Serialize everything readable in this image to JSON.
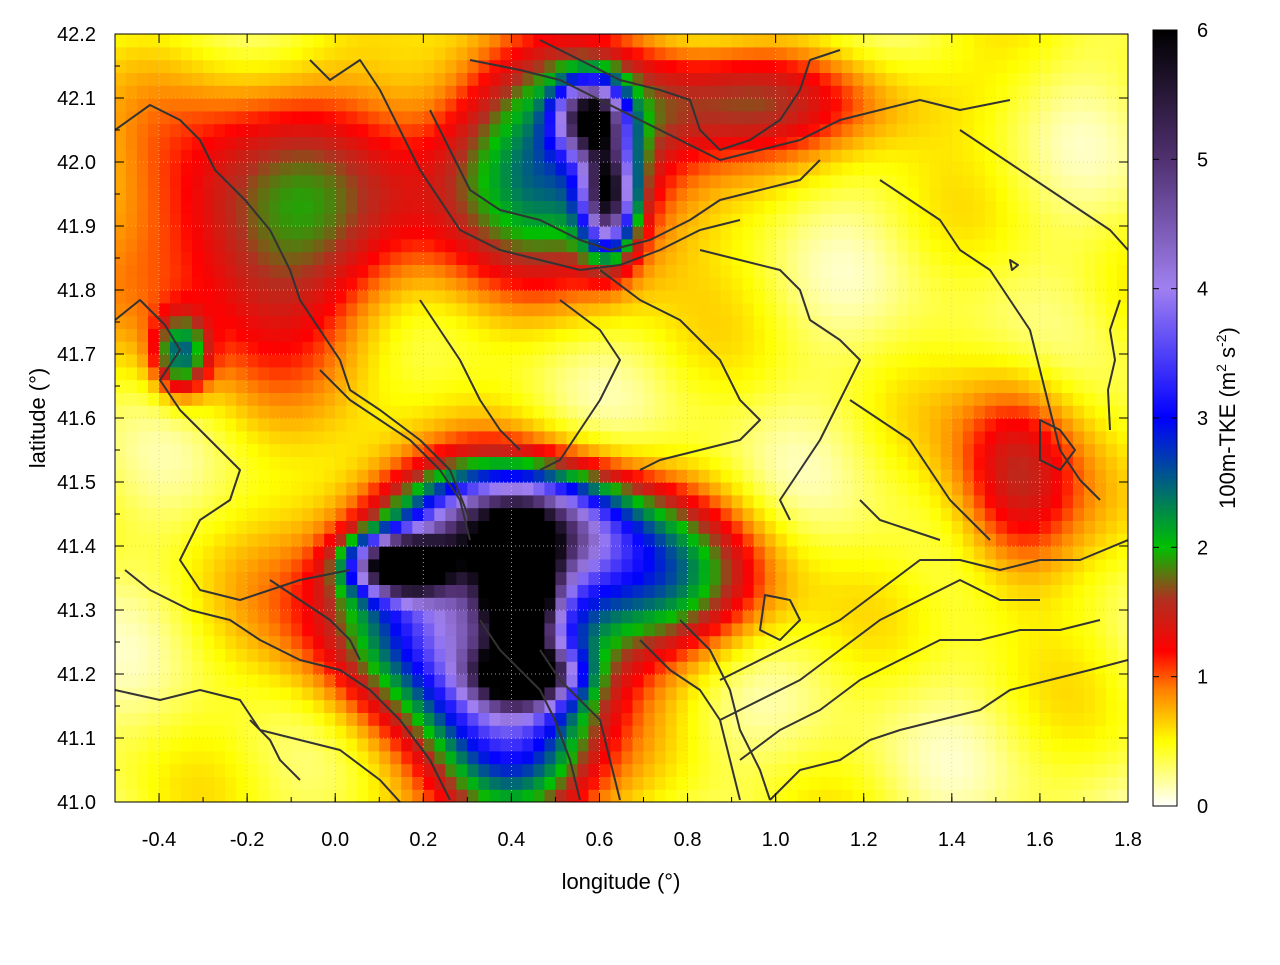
{
  "chart_data": {
    "type": "heatmap",
    "title": "",
    "xlabel": "longitude (°)",
    "ylabel": "latitude (°)",
    "xlim": [
      -0.5,
      1.8
    ],
    "ylim": [
      41.0,
      42.2
    ],
    "xticks": [
      -0.4,
      -0.2,
      0.0,
      0.2,
      0.4,
      0.6,
      0.8,
      1.0,
      1.2,
      1.4,
      1.6,
      1.8
    ],
    "xtick_labels": [
      "-0.4",
      "-0.2",
      "0.0",
      "0.2",
      "0.4",
      "0.6",
      "0.8",
      "1.0",
      "1.2",
      "1.4",
      "1.6",
      "1.8"
    ],
    "yticks": [
      41.0,
      41.1,
      41.2,
      41.3,
      41.4,
      41.5,
      41.6,
      41.7,
      41.8,
      41.9,
      42.0,
      42.1,
      42.2
    ],
    "ytick_labels": [
      "41.0",
      "41.1",
      "41.2",
      "41.3",
      "41.4",
      "41.5",
      "41.6",
      "41.7",
      "41.8",
      "41.9",
      "42.0",
      "42.1",
      "42.2"
    ],
    "grid": true,
    "colorbar": {
      "label": "100m-TKE (m² s⁻²)",
      "label_main": "100m-TKE (m",
      "label_sup1": "2",
      "label_mid": " s",
      "label_sup2": "-2",
      "label_end": ")",
      "range": [
        0,
        6
      ],
      "ticks": [
        0,
        1,
        2,
        3,
        4,
        5,
        6
      ],
      "tick_labels": [
        "0",
        "1",
        "2",
        "3",
        "4",
        "5",
        "6"
      ],
      "stops": [
        {
          "value": 0.0,
          "color": "#ffffff"
        },
        {
          "value": 0.5,
          "color": "#ffff00"
        },
        {
          "value": 0.9,
          "color": "#ff8000"
        },
        {
          "value": 1.2,
          "color": "#ff0000"
        },
        {
          "value": 1.6,
          "color": "#b03020"
        },
        {
          "value": 2.0,
          "color": "#00c000"
        },
        {
          "value": 3.0,
          "color": "#0000ff"
        },
        {
          "value": 4.0,
          "color": "#a080f0"
        },
        {
          "value": 5.0,
          "color": "#503070"
        },
        {
          "value": 6.0,
          "color": "#000000"
        }
      ]
    },
    "field_features": [
      {
        "lon": 0.42,
        "lat": 41.33,
        "value": 5.8,
        "spread_lon": 0.05,
        "spread_lat": 0.06
      },
      {
        "lon": 0.15,
        "lat": 41.37,
        "value": 5.5,
        "spread_lon": 0.07,
        "spread_lat": 0.03
      },
      {
        "lon": 0.42,
        "lat": 41.43,
        "value": 4.2,
        "spread_lon": 0.16,
        "spread_lat": 0.06
      },
      {
        "lon": 0.3,
        "lat": 41.3,
        "value": 3.2,
        "spread_lon": 0.22,
        "spread_lat": 0.12
      },
      {
        "lon": 0.43,
        "lat": 41.2,
        "value": 4.5,
        "spread_lon": 0.07,
        "spread_lat": 0.03
      },
      {
        "lon": 0.4,
        "lat": 41.1,
        "value": 2.5,
        "spread_lon": 0.12,
        "spread_lat": 0.12
      },
      {
        "lon": 0.62,
        "lat": 41.95,
        "value": 4.2,
        "spread_lon": 0.04,
        "spread_lat": 0.06
      },
      {
        "lon": 0.58,
        "lat": 42.07,
        "value": 4.0,
        "spread_lon": 0.05,
        "spread_lat": 0.04
      },
      {
        "lon": 0.5,
        "lat": 42.0,
        "value": 2.2,
        "spread_lon": 0.2,
        "spread_lat": 0.12
      },
      {
        "lon": -0.15,
        "lat": 41.9,
        "value": 1.5,
        "spread_lon": 0.22,
        "spread_lat": 0.15
      },
      {
        "lon": -0.35,
        "lat": 41.7,
        "value": 1.8,
        "spread_lon": 0.04,
        "spread_lat": 0.04
      },
      {
        "lon": 0.75,
        "lat": 41.35,
        "value": 1.6,
        "spread_lon": 0.16,
        "spread_lat": 0.08
      },
      {
        "lon": 1.55,
        "lat": 41.5,
        "value": 1.2,
        "spread_lon": 0.1,
        "spread_lat": 0.12
      },
      {
        "lon": 1.0,
        "lat": 42.1,
        "value": 1.0,
        "spread_lon": 0.25,
        "spread_lat": 0.06
      }
    ]
  }
}
